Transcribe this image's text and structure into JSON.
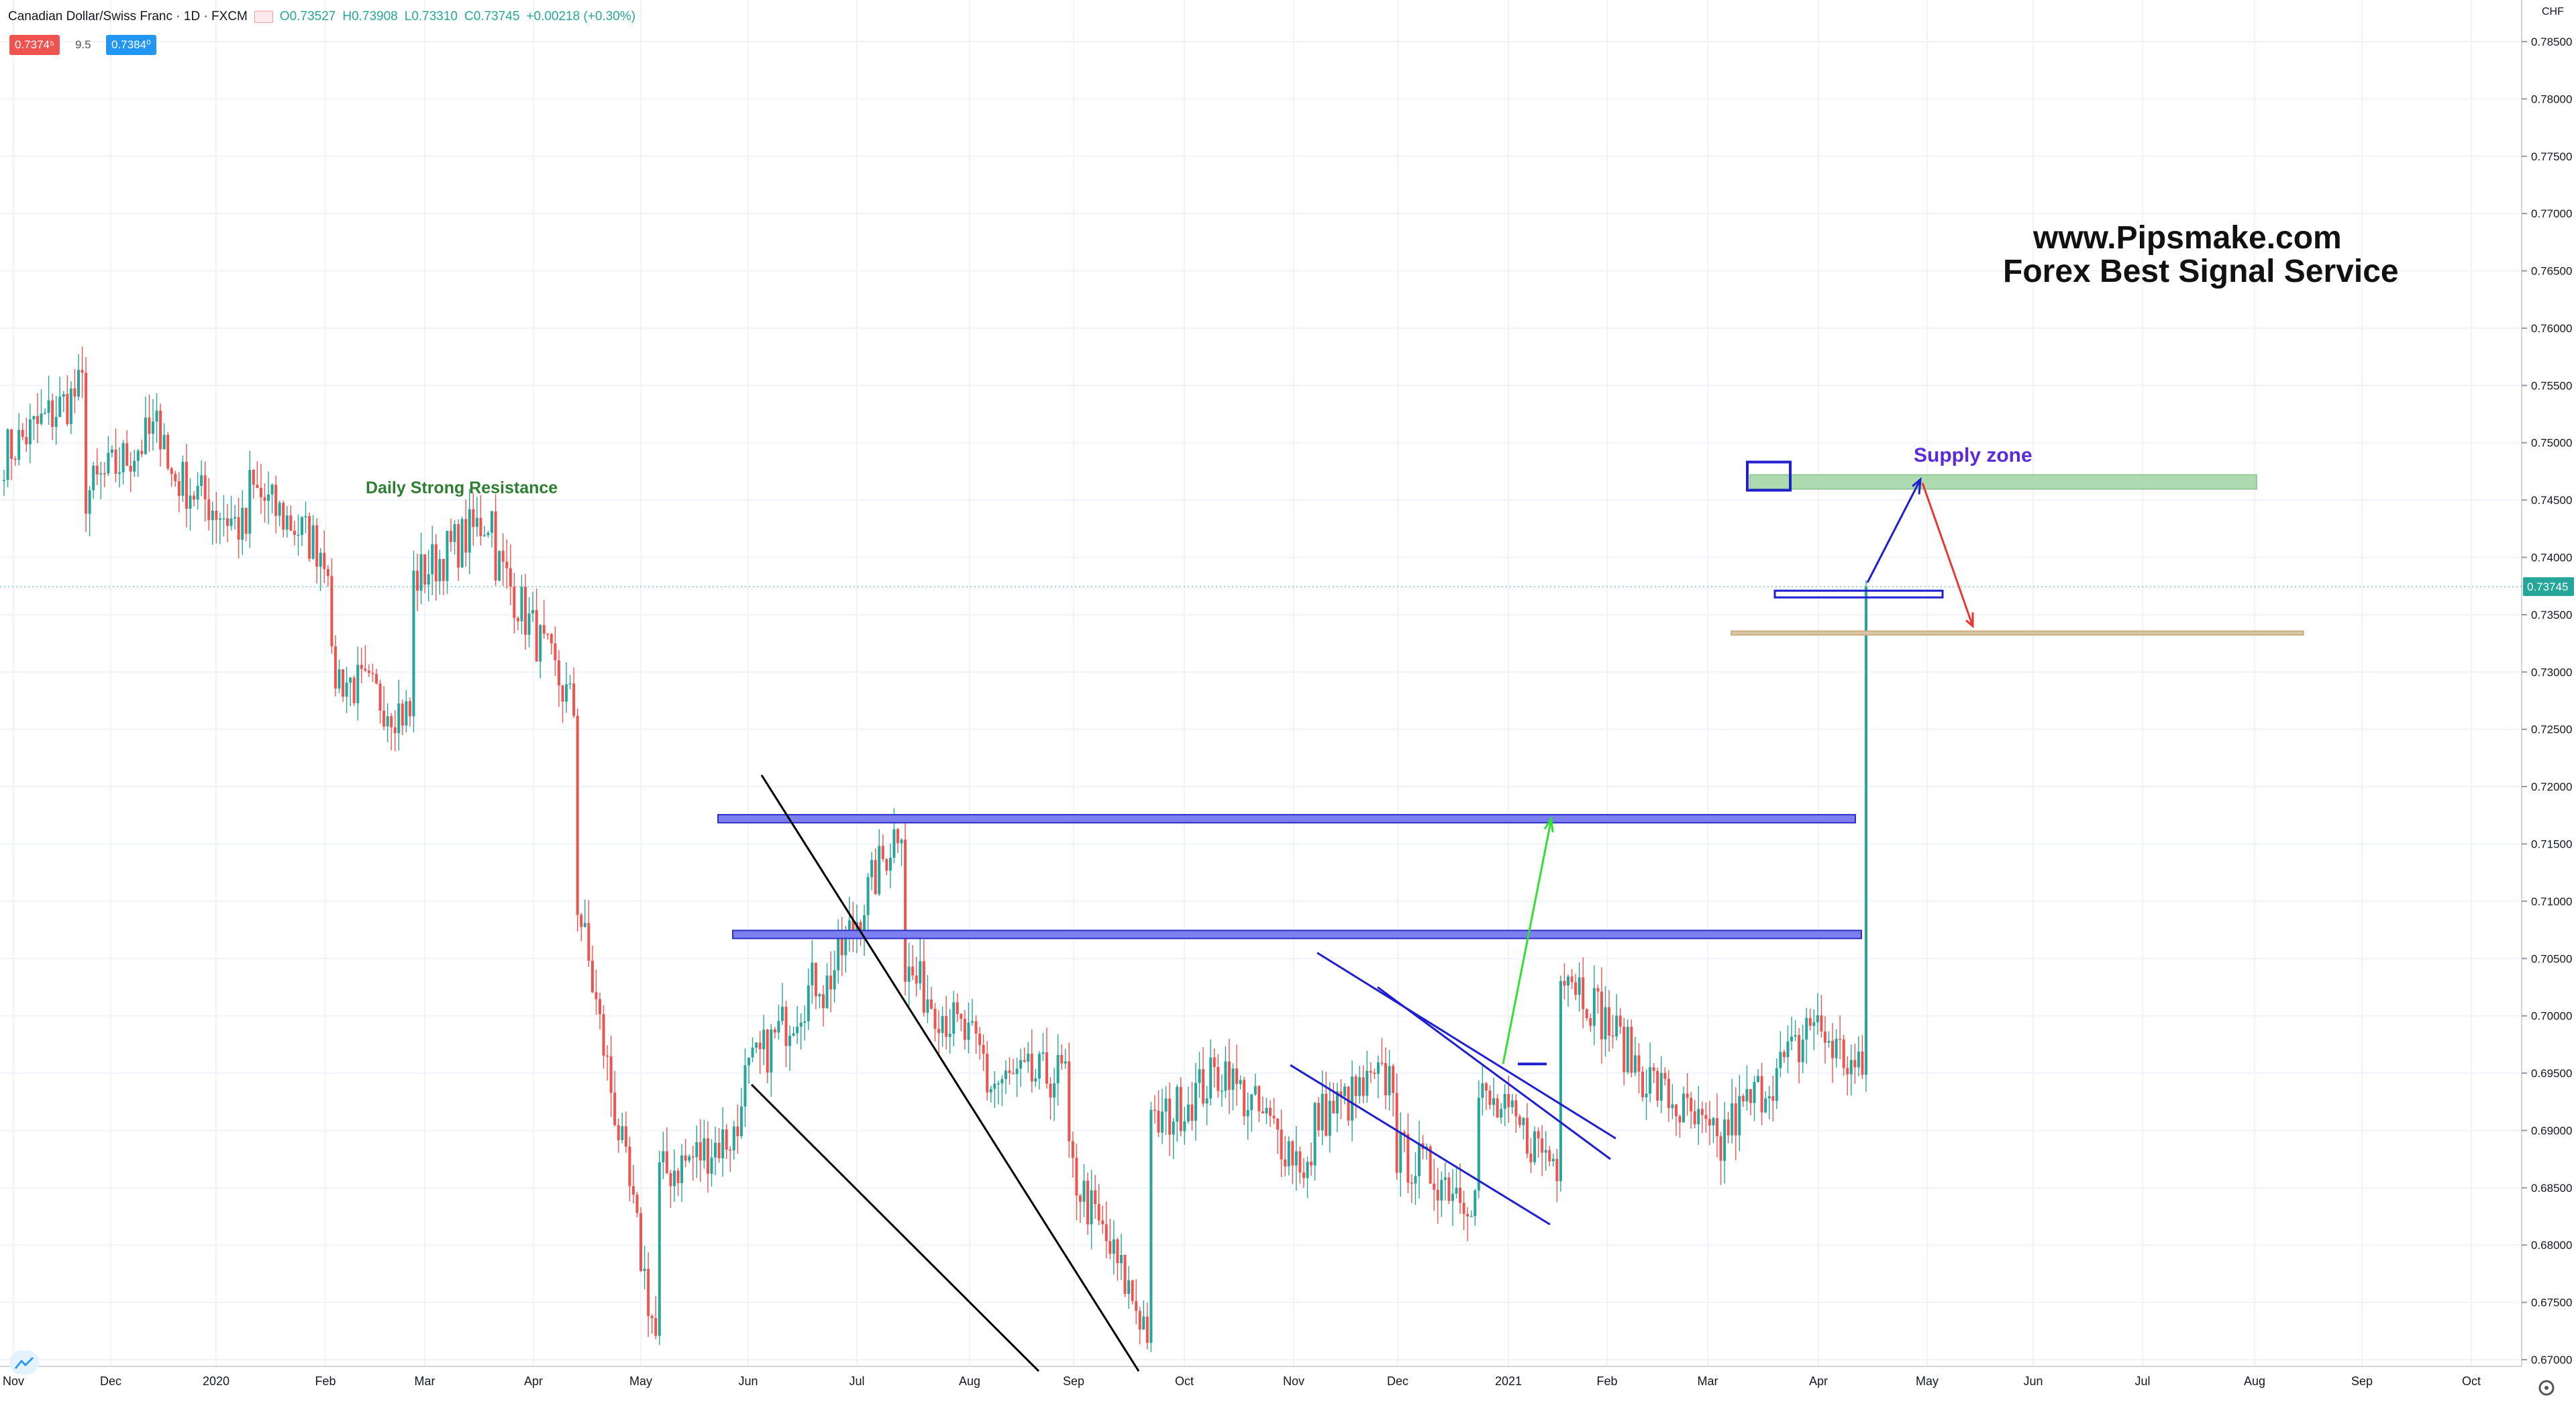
{
  "header": {
    "symbol": "Canadian Dollar/Swiss Franc · 1D · FXCM",
    "open": "O0.73527",
    "high": "H0.73908",
    "low": "L0.73310",
    "close": "C0.73745",
    "change": "+0.00218 (+0.30%)"
  },
  "quote": {
    "sell": "0.7374⁵",
    "spread": "9.5",
    "buy": "0.7384⁰"
  },
  "axis": {
    "currency": "CHF",
    "last_price": "0.73745"
  },
  "colors": {
    "up": "#26a69a",
    "down": "#ef5350",
    "zone_blue": "#5c5fe0",
    "zone_green": "#8bc58b",
    "zone_tan": "#c9a77a"
  },
  "chart_data": {
    "type": "candlestick",
    "ylim": [
      0.6695,
      0.7865
    ],
    "y_ticks": [
      "0.78500",
      "0.78000",
      "0.77500",
      "0.77000",
      "0.76500",
      "0.76000",
      "0.75500",
      "0.75000",
      "0.74500",
      "0.74000",
      "0.73500",
      "0.73000",
      "0.72500",
      "0.72000",
      "0.71500",
      "0.71000",
      "0.70500",
      "0.70000",
      "0.69500",
      "0.69000",
      "0.68500",
      "0.68000",
      "0.67500",
      "0.67000"
    ],
    "x_ticks": [
      "Nov",
      "Dec",
      "2020",
      "Feb",
      "Mar",
      "Apr",
      "May",
      "Jun",
      "Jul",
      "Aug",
      "Sep",
      "Oct",
      "Nov",
      "Dec",
      "2021",
      "Feb",
      "Mar",
      "Apr",
      "May",
      "Jun",
      "Jul",
      "Aug",
      "Sep",
      "Oct"
    ],
    "price_path": [
      [
        0.749,
        0.755
      ],
      [
        0.7455,
        0.752
      ],
      [
        0.7475,
        0.742
      ],
      [
        0.746,
        0.74
      ],
      [
        0.73,
        0.726
      ],
      [
        0.738,
        0.744
      ],
      [
        0.74,
        0.726
      ],
      [
        0.71,
        0.67
      ],
      [
        0.686,
        0.69
      ],
      [
        0.694,
        0.704
      ],
      [
        0.702,
        0.718
      ],
      [
        0.704,
        0.696
      ],
      [
        0.694,
        0.695
      ],
      [
        0.687,
        0.672
      ],
      [
        0.69,
        0.696
      ],
      [
        0.694,
        0.686
      ],
      [
        0.691,
        0.695
      ],
      [
        0.688,
        0.684
      ],
      [
        0.693,
        0.687
      ],
      [
        0.705,
        0.695
      ],
      [
        0.695,
        0.688
      ],
      [
        0.69,
        0.698
      ],
      [
        0.7,
        0.692
      ],
      [
        0.705,
        0.716
      ],
      [
        0.73,
        0.74
      ],
      [
        0.745,
        0.742
      ],
      [
        0.75,
        0.737
      ],
      [
        0.7374,
        0.7374
      ]
    ],
    "annotations": {
      "resistance_label": "Daily Strong Resistance",
      "supply_label": "Supply zone",
      "watermark_line1": "www.Pipsmake.com",
      "watermark_line2": "Forex Best Signal Service"
    },
    "zones": [
      {
        "type": "blue-band",
        "price": 0.7172
      },
      {
        "type": "blue-band",
        "price": 0.7071
      },
      {
        "type": "green-zone",
        "price_top": 0.7472,
        "price_bottom": 0.7462
      },
      {
        "type": "tan-line",
        "price": 0.7334
      },
      {
        "type": "blue-box-small",
        "price": 0.7368
      }
    ]
  }
}
